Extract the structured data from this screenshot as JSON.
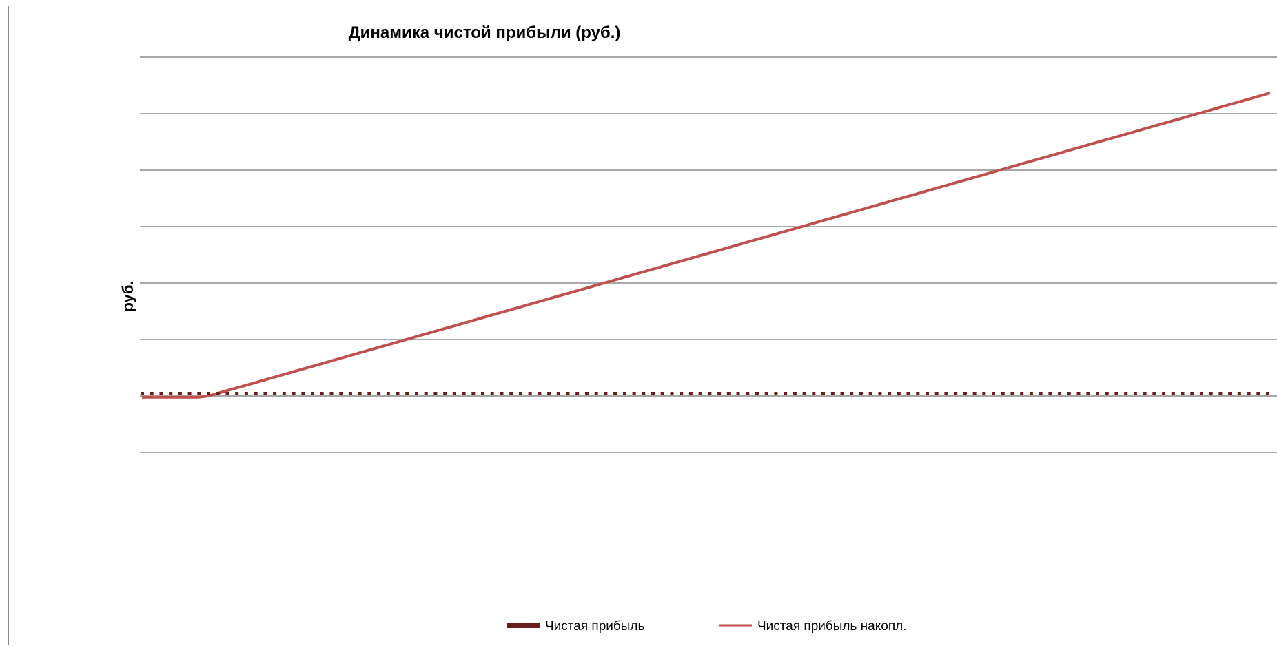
{
  "chart_data": {
    "type": "line",
    "title": "Динамика чистой прибыли (руб.)",
    "xlabel": "",
    "ylabel": "руб.",
    "grid": true,
    "legend_position": "bottom",
    "x_tick_labels_shown": false,
    "y_tick_labels_shown": false,
    "colors": {
      "net_profit": "#6b1c1c",
      "cumulative": "#c0504d",
      "grid": "#8c8c8c",
      "frame": "#8c8c8c"
    },
    "gridline_count": 8,
    "zero_gridline_index": 6,
    "series": [
      {
        "name": "Чистая прибыль",
        "style": "dotted",
        "periods": 120,
        "value_relative_to_max": 0.009
      },
      {
        "name": "Чистая прибыль накопл.",
        "style": "line",
        "periods": 120,
        "flat_periods": 7,
        "end_value_relative_to_max": 1.0
      }
    ]
  }
}
